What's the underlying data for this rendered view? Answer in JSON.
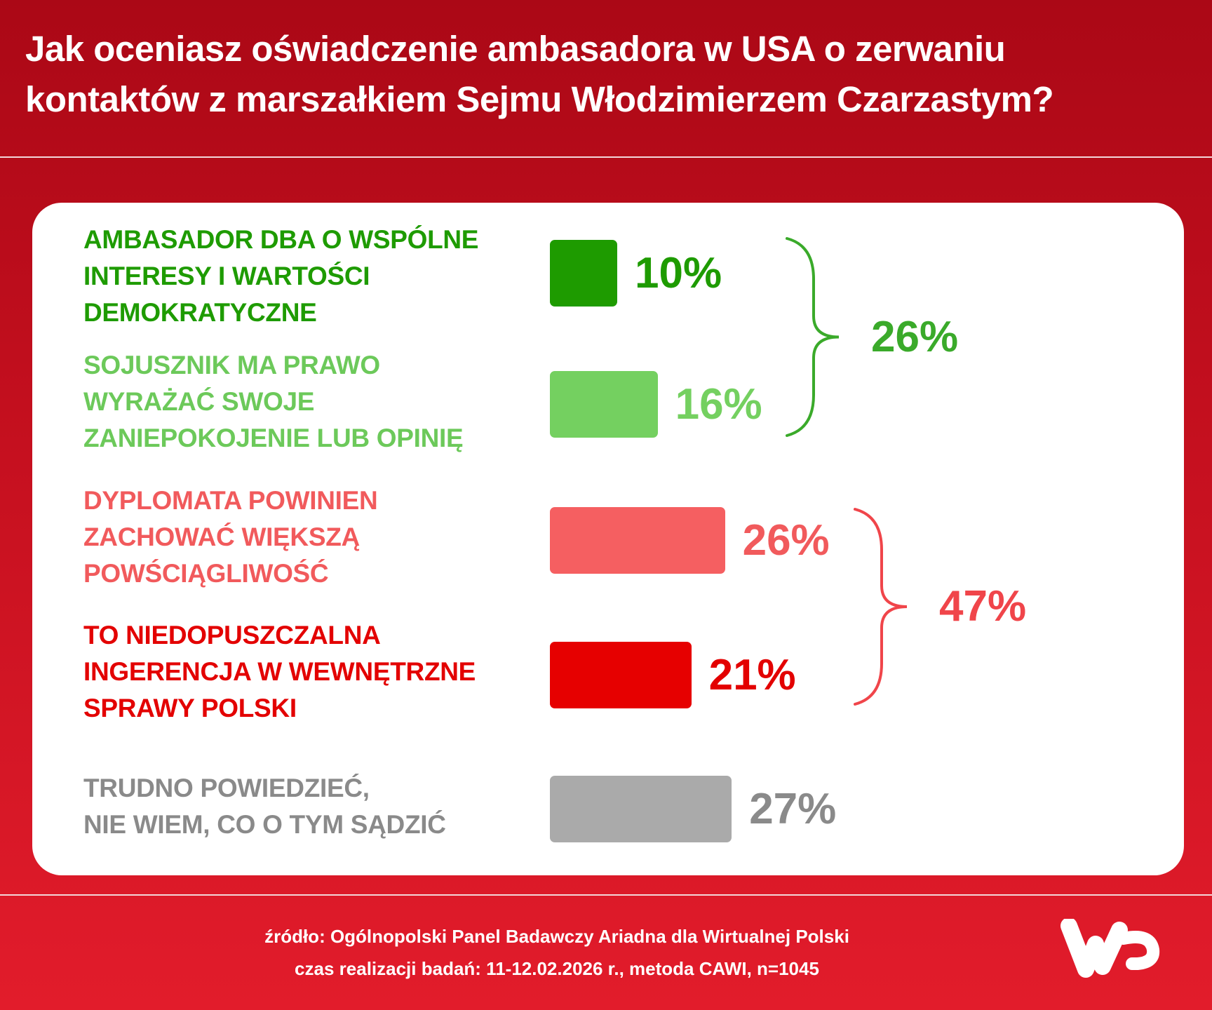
{
  "title": {
    "line1": "Jak oceniasz oświadczenie ambasadora w USA o zerwaniu",
    "line2": "kontaktów z marszałkiem Sejmu Włodzimierzem Czarzastym?"
  },
  "chart_data": {
    "type": "bar",
    "orientation": "horizontal",
    "title": "Jak oceniasz oświadczenie ambasadora w USA o zerwaniu kontaktów z marszałkiem Sejmu Włodzimierzem Czarzastym?",
    "unit": "%",
    "categories": [
      [
        "AMBASADOR DBA O WSPÓLNE",
        "INTERESY I WARTOŚCI",
        "DEMOKRATYCZNE"
      ],
      [
        "SOJUSZNIK MA PRAWO",
        "WYRAŻAĆ SWOJE",
        "ZANIEPOKOJENIE LUB OPINIĘ"
      ],
      [
        "DYPLOMATA POWINIEN",
        "ZACHOWAĆ WIĘKSZĄ",
        "POWŚCIĄGLIWOŚĆ"
      ],
      [
        "TO NIEDOPUSZCZALNA",
        "INGERENCJA W WEWNĘTRZNE",
        "SPRAWY POLSKI"
      ],
      [
        "TRUDNO POWIEDZIEĆ,",
        "NIE WIEM, CO O TYM SĄDZIĆ"
      ]
    ],
    "values": [
      10,
      16,
      26,
      21,
      27
    ],
    "value_labels": [
      "10%",
      "16%",
      "26%",
      "21%",
      "27%"
    ],
    "colors": [
      "#1e9b00",
      "#74d060",
      "#f55f61",
      "#e60000",
      "#aaaaaa"
    ],
    "label_colors": [
      "#1e9b00",
      "#6cc95a",
      "#f15a5c",
      "#e30000",
      "#8a8a8a"
    ],
    "value_colors": [
      "#1e9b00",
      "#74d060",
      "#f15a5c",
      "#e30000",
      "#8a8a8a"
    ],
    "groups": [
      {
        "members": [
          0,
          1
        ],
        "total": 26,
        "label": "26%",
        "color": "#3aaa2a"
      },
      {
        "members": [
          2,
          3
        ],
        "total": 47,
        "label": "47%",
        "color": "#f0454a"
      }
    ],
    "grid": false
  },
  "footer": {
    "source": "źródło: Ogólnopolski Panel Badawczy Ariadna dla Wirtualnej Polski",
    "method": "czas realizacji badań: 11-12.02.2026 r., metoda CAWI, n=1045"
  },
  "logo": {
    "text": "WP",
    "color": "#ffffff"
  }
}
